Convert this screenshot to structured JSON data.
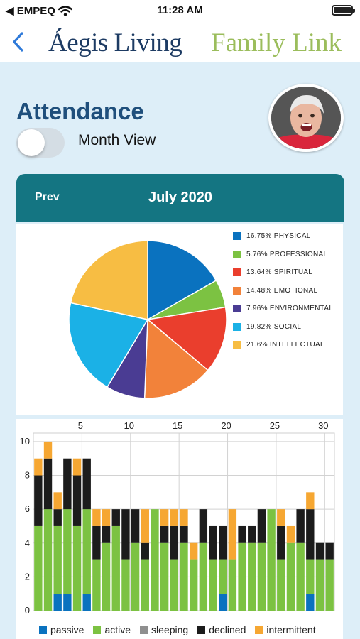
{
  "status_bar": {
    "carrier": "◀ EMPEQ",
    "time": "11:28 AM"
  },
  "nav": {
    "brand_name": "Áegis Living",
    "brand_sub": "Family Link"
  },
  "page": {
    "title": "Attendance",
    "toggle_label": "Month View",
    "toggle_on": false
  },
  "month_nav": {
    "prev_label": "Prev",
    "month": "July 2020"
  },
  "colors": {
    "physical": "#0a72bf",
    "professional": "#7cc242",
    "spiritual": "#ea3e2d",
    "emotional": "#f2823a",
    "environmental": "#4a3c93",
    "social": "#1bb1e6",
    "intellectual": "#f7bd43",
    "passive": "#0a72bf",
    "active": "#7cc242",
    "sleeping": "#8f8f8f",
    "declined": "#1c1c1c",
    "intermittent": "#f6a732",
    "header": "#147582",
    "title": "#1f4f7c"
  },
  "chart_data": [
    {
      "type": "pie",
      "legend_position": "right",
      "slices": [
        {
          "label": "16.75% PHYSICAL",
          "value": 16.75,
          "color": "#0a72bf"
        },
        {
          "label": "5.76% PROFESSIONAL",
          "value": 5.76,
          "color": "#7cc242"
        },
        {
          "label": "13.64% SPIRITUAL",
          "value": 13.64,
          "color": "#ea3e2d"
        },
        {
          "label": "14.48% EMOTIONAL",
          "value": 14.48,
          "color": "#f2823a"
        },
        {
          "label": "7.96% ENVIRONMENTAL",
          "value": 7.96,
          "color": "#4a3c93"
        },
        {
          "label": "19.82% SOCIAL",
          "value": 19.82,
          "color": "#1bb1e6"
        },
        {
          "label": "21.6% INTELLECTUAL",
          "value": 21.6,
          "color": "#f7bd43"
        }
      ]
    },
    {
      "type": "bar",
      "stacked": true,
      "x": [
        1,
        2,
        3,
        4,
        5,
        6,
        7,
        8,
        9,
        10,
        11,
        12,
        13,
        14,
        15,
        16,
        17,
        18,
        19,
        20,
        21,
        22,
        23,
        24,
        25,
        26,
        27,
        28,
        29,
        30,
        31
      ],
      "x_ticks": [
        5,
        10,
        15,
        20,
        25,
        30
      ],
      "x_axis_position": "top",
      "y_ticks": [
        0,
        2,
        4,
        6,
        8,
        10
      ],
      "ylim": [
        0,
        10.5
      ],
      "grid": true,
      "legend_position": "bottom",
      "series": [
        {
          "name": "passive",
          "color": "#0a72bf",
          "values": [
            0,
            0,
            1,
            1,
            0,
            1,
            0,
            0,
            0,
            0,
            0,
            0,
            0,
            0,
            0,
            0,
            0,
            0,
            0,
            1,
            0,
            0,
            0,
            0,
            0,
            0,
            0,
            0,
            1,
            0,
            0
          ]
        },
        {
          "name": "active",
          "color": "#7cc242",
          "values": [
            5,
            6,
            4,
            5,
            5,
            5,
            3,
            4,
            5,
            3,
            4,
            3,
            6,
            4,
            3,
            4,
            3,
            4,
            3,
            2,
            3,
            4,
            4,
            4,
            6,
            3,
            4,
            4,
            2,
            3,
            3
          ]
        },
        {
          "name": "sleeping",
          "color": "#8f8f8f",
          "values": [
            0,
            0,
            0,
            0,
            0,
            0,
            0,
            0,
            0,
            0,
            0,
            0,
            0,
            0,
            0,
            0,
            0,
            0,
            0,
            0,
            0,
            0,
            0,
            0,
            0,
            0,
            0,
            0,
            0,
            0,
            0
          ]
        },
        {
          "name": "declined",
          "color": "#1c1c1c",
          "values": [
            3,
            3,
            1,
            3,
            3,
            3,
            2,
            1,
            1,
            3,
            2,
            1,
            0,
            1,
            2,
            1,
            0,
            2,
            2,
            2,
            0,
            1,
            1,
            2,
            0,
            2,
            0,
            2,
            3,
            1,
            1
          ]
        },
        {
          "name": "intermittent",
          "color": "#f6a732",
          "values": [
            1,
            1,
            1,
            0,
            1,
            0,
            1,
            1,
            0,
            0,
            0,
            2,
            0,
            1,
            1,
            1,
            1,
            0,
            0,
            0,
            3,
            0,
            0,
            0,
            0,
            1,
            1,
            0,
            1,
            0,
            0
          ]
        }
      ]
    }
  ]
}
